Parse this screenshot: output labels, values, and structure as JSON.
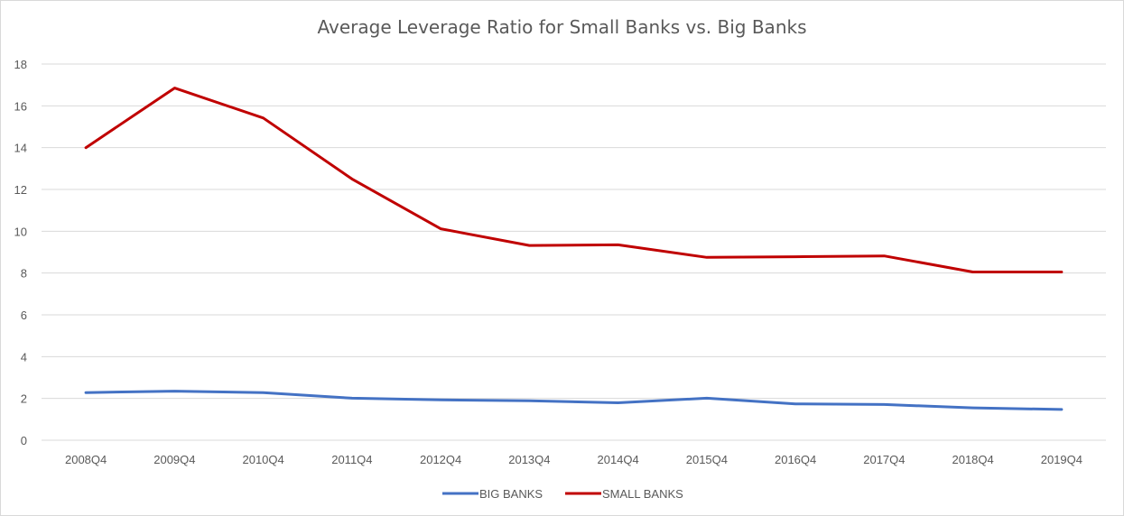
{
  "chart_data": {
    "type": "line",
    "title": "Average Leverage Ratio for Small Banks vs. Big Banks",
    "xlabel": "",
    "ylabel": "",
    "categories": [
      "2008Q4",
      "2009Q4",
      "2010Q4",
      "2011Q4",
      "2012Q4",
      "2013Q4",
      "2014Q4",
      "2015Q4",
      "2016Q4",
      "2017Q4",
      "2018Q4",
      "2019Q4"
    ],
    "ylim": [
      0,
      18
    ],
    "yticks": [
      0,
      2,
      4,
      6,
      8,
      10,
      12,
      14,
      16,
      18
    ],
    "grid": true,
    "legend_position": "bottom",
    "series": [
      {
        "name": "BIG BANKS",
        "color": "#4472c4",
        "values": [
          2.28,
          2.35,
          2.28,
          2.01,
          1.93,
          1.89,
          1.79,
          2.01,
          1.74,
          1.71,
          1.55,
          1.47
        ]
      },
      {
        "name": "SMALL BANKS",
        "color": "#c00000",
        "values": [
          14.0,
          16.85,
          15.42,
          12.5,
          10.12,
          9.32,
          9.35,
          8.75,
          8.78,
          8.82,
          8.05,
          8.05
        ]
      }
    ]
  }
}
